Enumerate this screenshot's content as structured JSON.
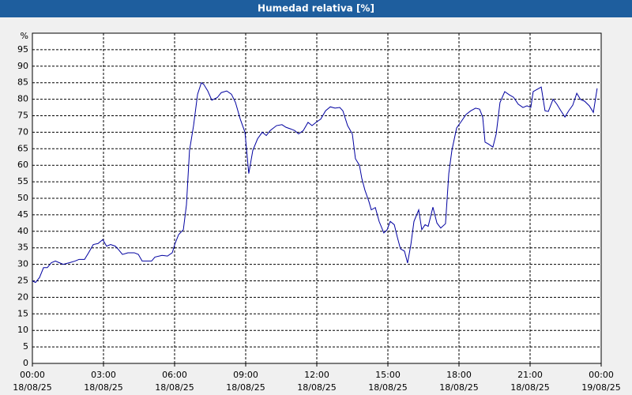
{
  "chart_data": {
    "type": "line",
    "title": "Humedad relativa [%]",
    "y_label": "%",
    "series": [
      {
        "name": "Humedad relativa",
        "color": "#0000a0",
        "x": [
          0,
          0.13,
          0.3,
          0.47,
          0.63,
          0.8,
          0.97,
          1.13,
          1.3,
          1.57,
          1.8,
          1.97,
          2.2,
          2.37,
          2.57,
          2.77,
          2.97,
          3.13,
          3.3,
          3.5,
          3.63,
          3.8,
          4.03,
          4.3,
          4.47,
          4.63,
          4.9,
          5.03,
          5.17,
          5.47,
          5.7,
          5.9,
          6.03,
          6.17,
          6.37,
          6.5,
          6.63,
          6.8,
          6.97,
          7.13,
          7.23,
          7.4,
          7.57,
          7.8,
          7.97,
          8.2,
          8.4,
          8.57,
          8.77,
          8.97,
          9.13,
          9.3,
          9.5,
          9.7,
          9.87,
          10.03,
          10.3,
          10.53,
          10.7,
          10.9,
          11.07,
          11.23,
          11.43,
          11.63,
          11.8,
          11.97,
          12.17,
          12.37,
          12.57,
          12.77,
          12.97,
          13.1,
          13.3,
          13.5,
          13.63,
          13.8,
          13.9,
          14.03,
          14.2,
          14.3,
          14.47,
          14.63,
          14.83,
          14.97,
          15.1,
          15.27,
          15.4,
          15.53,
          15.7,
          15.83,
          15.97,
          16.1,
          16.3,
          16.43,
          16.57,
          16.7,
          16.9,
          17.07,
          17.23,
          17.43,
          17.57,
          17.7,
          17.9,
          18.07,
          18.3,
          18.5,
          18.7,
          18.87,
          19,
          19.1,
          19.23,
          19.43,
          19.57,
          19.73,
          19.93,
          20.13,
          20.3,
          20.5,
          20.7,
          20.87,
          21.03,
          21.13,
          21.3,
          21.47,
          21.63,
          21.77,
          21.97,
          22.13,
          22.3,
          22.47,
          22.63,
          22.8,
          22.97,
          23.13,
          23.3,
          23.5,
          23.67,
          23.83
        ],
        "values": [
          25,
          24.5,
          26,
          29,
          29,
          30.5,
          31,
          30.5,
          30,
          30.5,
          31,
          31.5,
          31.5,
          33.5,
          36,
          36.3,
          37.5,
          35.5,
          36,
          35.5,
          34.5,
          33,
          33.5,
          33.5,
          33,
          31,
          31,
          31,
          32.2,
          32.7,
          32.5,
          33.5,
          36.5,
          39,
          40.5,
          48,
          64.5,
          72,
          81.5,
          85,
          84.5,
          82.5,
          79.7,
          80.5,
          82,
          82.5,
          81.5,
          79,
          74,
          70,
          57.5,
          64.5,
          68,
          70,
          69,
          70.5,
          72,
          72.3,
          71.5,
          71,
          70.5,
          69.5,
          70.5,
          73,
          72,
          73,
          74,
          76.5,
          77.7,
          77.3,
          77.5,
          76.5,
          72,
          69.5,
          62,
          60,
          56,
          52.5,
          49,
          46.5,
          47.2,
          43,
          39.5,
          40.5,
          43,
          42,
          38.2,
          34.7,
          34,
          30.4,
          36,
          43,
          46.5,
          40.5,
          42,
          41.5,
          47.3,
          42.5,
          41,
          42.3,
          57.5,
          64.5,
          71.3,
          73,
          75.4,
          76.5,
          77.3,
          77,
          74.6,
          67,
          66.5,
          65.5,
          69.5,
          79,
          82.3,
          81.3,
          80.6,
          78.5,
          77.5,
          78,
          77.5,
          82.3,
          83,
          83.7,
          76.5,
          76.3,
          80,
          78.5,
          76.5,
          74.6,
          76.5,
          78.2,
          81.8,
          79.9,
          79.4,
          78,
          76,
          83.3
        ]
      }
    ],
    "xlim": [
      0,
      24
    ],
    "xticks": [
      {
        "value": 0,
        "label": "00:00"
      },
      {
        "value": 3,
        "label": "03:00"
      },
      {
        "value": 6,
        "label": "06:00"
      },
      {
        "value": 9,
        "label": "09:00"
      },
      {
        "value": 12,
        "label": "12:00"
      },
      {
        "value": 15,
        "label": "15:00"
      },
      {
        "value": 18,
        "label": "18:00"
      },
      {
        "value": 21,
        "label": "21:00"
      },
      {
        "value": 24,
        "label": "00:00"
      }
    ],
    "xtick_dates": [
      "18/08/25",
      "18/08/25",
      "18/08/25",
      "18/08/25",
      "18/08/25",
      "18/08/25",
      "18/08/25",
      "18/08/25",
      "19/08/25"
    ],
    "ylim": [
      0,
      100
    ],
    "yticks": [
      0,
      5,
      10,
      15,
      20,
      25,
      30,
      35,
      40,
      45,
      50,
      55,
      60,
      65,
      70,
      75,
      80,
      85,
      90,
      95
    ],
    "grid": true
  }
}
